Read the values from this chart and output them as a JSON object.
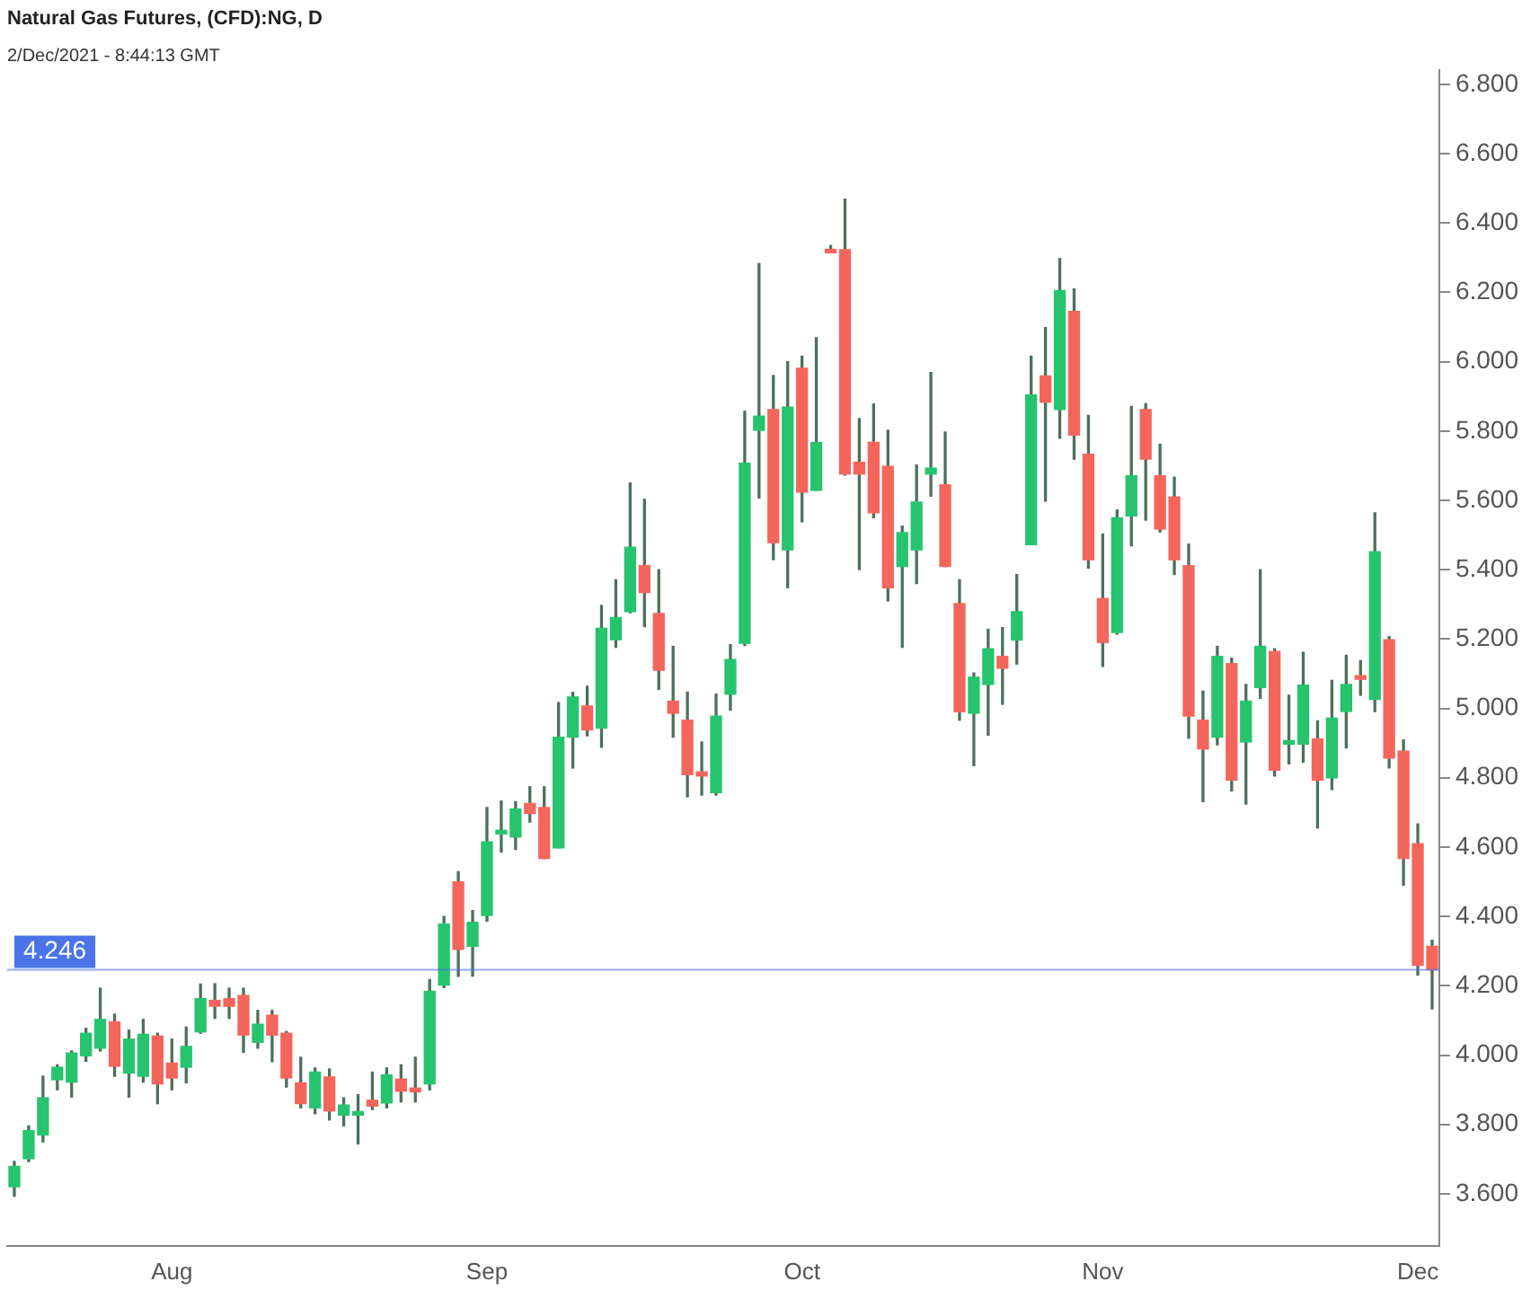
{
  "chart_data": {
    "type": "candlestick",
    "title": "Natural Gas Futures, (CFD):NG, D",
    "subtitle": "2/Dec/2021 - 8:44:13 GMT",
    "categories": [
      null,
      null,
      null,
      null,
      null,
      null,
      null,
      null,
      null,
      null,
      null,
      "Aug",
      null,
      null,
      null,
      null,
      null,
      null,
      null,
      null,
      null,
      null,
      null,
      null,
      null,
      null,
      null,
      null,
      null,
      null,
      null,
      null,
      null,
      "Sep",
      null,
      null,
      null,
      null,
      null,
      null,
      null,
      null,
      null,
      null,
      null,
      null,
      null,
      null,
      null,
      null,
      null,
      null,
      null,
      null,
      null,
      "Oct",
      null,
      null,
      null,
      null,
      null,
      null,
      null,
      null,
      null,
      null,
      null,
      null,
      null,
      null,
      null,
      null,
      null,
      null,
      null,
      null,
      "Nov",
      null,
      null,
      null,
      null,
      null,
      null,
      null,
      null,
      null,
      null,
      null,
      null,
      null,
      null,
      null,
      null,
      null,
      null,
      null,
      null,
      null,
      "Dec",
      null
    ],
    "ohlc": [
      [
        3.62,
        3.693,
        3.593,
        3.679
      ],
      [
        3.701,
        3.796,
        3.693,
        3.782
      ],
      [
        3.77,
        3.939,
        3.75,
        3.877
      ],
      [
        3.929,
        3.972,
        3.9,
        3.965
      ],
      [
        3.922,
        4.012,
        3.879,
        4.006
      ],
      [
        3.998,
        4.077,
        3.982,
        4.063
      ],
      [
        4.02,
        4.193,
        4.012,
        4.103
      ],
      [
        4.096,
        4.118,
        3.939,
        3.968
      ],
      [
        3.948,
        4.072,
        3.879,
        4.046
      ],
      [
        3.939,
        4.103,
        3.922,
        4.06
      ],
      [
        4.055,
        4.063,
        3.86,
        3.917
      ],
      [
        3.977,
        4.046,
        3.9,
        3.934
      ],
      [
        3.965,
        4.081,
        3.92,
        4.025
      ],
      [
        4.067,
        4.205,
        4.063,
        4.163
      ],
      [
        4.158,
        4.206,
        4.106,
        4.141
      ],
      [
        4.163,
        4.193,
        4.106,
        4.141
      ],
      [
        4.172,
        4.193,
        4.008,
        4.058
      ],
      [
        4.037,
        4.129,
        4.02,
        4.089
      ],
      [
        4.115,
        4.129,
        3.981,
        4.058
      ],
      [
        4.063,
        4.068,
        3.908,
        3.934
      ],
      [
        3.92,
        3.994,
        3.848,
        3.86
      ],
      [
        3.848,
        3.963,
        3.831,
        3.951
      ],
      [
        3.937,
        3.96,
        3.813,
        3.839
      ],
      [
        3.827,
        3.877,
        3.796,
        3.856
      ],
      [
        3.827,
        3.886,
        3.744,
        3.834
      ],
      [
        3.87,
        3.951,
        3.843,
        3.853
      ],
      [
        3.862,
        3.963,
        3.848,
        3.943
      ],
      [
        3.931,
        3.972,
        3.865,
        3.896
      ],
      [
        3.905,
        3.994,
        3.865,
        3.894
      ],
      [
        3.917,
        4.218,
        3.9,
        4.184
      ],
      [
        4.202,
        4.4,
        4.195,
        4.378
      ],
      [
        4.5,
        4.529,
        4.227,
        4.305
      ],
      [
        4.314,
        4.417,
        4.228,
        4.383
      ],
      [
        4.403,
        4.714,
        4.386,
        4.615
      ],
      [
        4.638,
        4.733,
        4.586,
        4.645
      ],
      [
        4.629,
        4.731,
        4.593,
        4.71
      ],
      [
        4.726,
        4.774,
        4.672,
        4.697
      ],
      [
        4.714,
        4.774,
        4.567,
        4.567
      ],
      [
        4.598,
        5.017,
        4.598,
        4.917
      ],
      [
        4.917,
        5.046,
        4.828,
        5.033
      ],
      [
        5.007,
        5.064,
        4.921,
        4.938
      ],
      [
        4.943,
        5.297,
        4.888,
        5.231
      ],
      [
        5.198,
        5.371,
        5.176,
        5.262
      ],
      [
        5.279,
        5.65,
        5.276,
        5.465
      ],
      [
        5.412,
        5.603,
        5.236,
        5.334
      ],
      [
        5.274,
        5.4,
        5.055,
        5.11
      ],
      [
        5.021,
        5.179,
        4.917,
        4.986
      ],
      [
        4.966,
        5.047,
        4.745,
        4.809
      ],
      [
        4.817,
        4.903,
        4.75,
        4.805
      ],
      [
        4.757,
        5.041,
        4.75,
        4.978
      ],
      [
        5.041,
        5.184,
        4.995,
        5.141
      ],
      [
        5.188,
        5.857,
        5.181,
        5.707
      ],
      [
        5.802,
        6.283,
        5.607,
        5.843
      ],
      [
        5.862,
        5.96,
        5.429,
        5.478
      ],
      [
        5.457,
        6.0,
        5.348,
        5.869
      ],
      [
        5.981,
        6.016,
        5.538,
        5.624
      ],
      [
        5.629,
        6.069,
        5.629,
        5.767
      ],
      [
        6.321,
        6.335,
        6.314,
        6.314
      ],
      [
        6.323,
        6.469,
        5.673,
        5.676
      ],
      [
        5.71,
        5.836,
        5.4,
        5.676
      ],
      [
        5.767,
        5.878,
        5.55,
        5.564
      ],
      [
        5.698,
        5.802,
        5.31,
        5.348
      ],
      [
        5.409,
        5.526,
        5.176,
        5.507
      ],
      [
        5.457,
        5.702,
        5.36,
        5.595
      ],
      [
        5.676,
        5.969,
        5.612,
        5.693
      ],
      [
        5.645,
        5.797,
        5.409,
        5.409
      ],
      [
        5.302,
        5.371,
        4.966,
        4.99
      ],
      [
        4.986,
        5.102,
        4.835,
        5.09
      ],
      [
        5.069,
        5.228,
        4.923,
        5.172
      ],
      [
        5.15,
        5.233,
        5.012,
        5.116
      ],
      [
        5.197,
        5.386,
        5.128,
        5.279
      ],
      [
        5.472,
        6.016,
        5.472,
        5.904
      ],
      [
        5.959,
        6.098,
        5.598,
        5.883
      ],
      [
        5.862,
        6.297,
        5.779,
        6.205
      ],
      [
        6.145,
        6.21,
        5.719,
        5.788
      ],
      [
        5.733,
        5.845,
        5.405,
        5.429
      ],
      [
        5.317,
        5.503,
        5.121,
        5.19
      ],
      [
        5.219,
        5.572,
        5.214,
        5.55
      ],
      [
        5.555,
        5.871,
        5.469,
        5.671
      ],
      [
        5.862,
        5.879,
        5.543,
        5.719
      ],
      [
        5.671,
        5.762,
        5.509,
        5.517
      ],
      [
        5.61,
        5.667,
        5.386,
        5.429
      ],
      [
        5.412,
        5.474,
        4.914,
        4.978
      ],
      [
        4.966,
        5.05,
        4.731,
        4.883
      ],
      [
        4.917,
        5.179,
        4.895,
        5.15
      ],
      [
        5.129,
        5.145,
        4.762,
        4.793
      ],
      [
        4.903,
        5.069,
        4.724,
        5.021
      ],
      [
        5.06,
        5.4,
        5.029,
        5.179
      ],
      [
        5.164,
        5.172,
        4.805,
        4.822
      ],
      [
        4.897,
        5.038,
        4.84,
        4.905
      ],
      [
        4.897,
        5.162,
        4.845,
        5.067
      ],
      [
        4.912,
        4.964,
        4.655,
        4.793
      ],
      [
        4.8,
        5.081,
        4.766,
        4.972
      ],
      [
        4.991,
        5.153,
        4.886,
        5.069
      ],
      [
        5.09,
        5.138,
        5.038,
        5.084
      ],
      [
        5.026,
        5.564,
        4.991,
        5.452
      ],
      [
        5.198,
        5.207,
        4.828,
        4.857
      ],
      [
        4.877,
        4.909,
        4.49,
        4.567
      ],
      [
        4.61,
        4.667,
        4.231,
        4.259
      ],
      [
        4.314,
        4.331,
        4.133,
        4.246
      ]
    ],
    "colors": [
      "#26c46f",
      "#26c46f",
      "#26c46f",
      "#26c46f",
      "#26c46f",
      "#26c46f",
      "#26c46f",
      "#f4665c",
      "#26c46f",
      "#26c46f",
      "#f4665c",
      "#f4665c",
      "#26c46f",
      "#26c46f",
      "#f4665c",
      "#f4665c",
      "#f4665c",
      "#26c46f",
      "#f4665c",
      "#f4665c",
      "#f4665c",
      "#26c46f",
      "#f4665c",
      "#26c46f",
      "#26c46f",
      "#f4665c",
      "#26c46f",
      "#f4665c",
      "#f4665c",
      "#26c46f",
      "#26c46f",
      "#f4665c",
      "#26c46f",
      "#26c46f",
      "#26c46f",
      "#26c46f",
      "#f4665c",
      "#f4665c",
      "#26c46f",
      "#26c46f",
      "#f4665c",
      "#26c46f",
      "#26c46f",
      "#26c46f",
      "#f4665c",
      "#f4665c",
      "#f4665c",
      "#f4665c",
      "#f4665c",
      "#26c46f",
      "#26c46f",
      "#26c46f",
      "#26c46f",
      "#f4665c",
      "#26c46f",
      "#f4665c",
      "#26c46f",
      "#f4665c",
      "#f4665c",
      "#f4665c",
      "#f4665c",
      "#f4665c",
      "#26c46f",
      "#26c46f",
      "#26c46f",
      "#f4665c",
      "#f4665c",
      "#26c46f",
      "#26c46f",
      "#f4665c",
      "#26c46f",
      "#26c46f",
      "#f4665c",
      "#26c46f",
      "#f4665c",
      "#f4665c",
      "#f4665c",
      "#26c46f",
      "#26c46f",
      "#f4665c",
      "#f4665c",
      "#f4665c",
      "#f4665c",
      "#f4665c",
      "#26c46f",
      "#f4665c",
      "#26c46f",
      "#26c46f",
      "#f4665c",
      "#26c46f",
      "#26c46f",
      "#f4665c",
      "#26c46f",
      "#26c46f",
      "#f4665c",
      "#26c46f",
      "#f4665c",
      "#f4665c",
      "#f4665c",
      "#f4665c"
    ],
    "ylim": [
      3.45,
      6.84
    ],
    "yticks": [
      {
        "value": 3.6,
        "label": "3.600"
      },
      {
        "value": 3.8,
        "label": "3.800"
      },
      {
        "value": 4.0,
        "label": "4.000"
      },
      {
        "value": 4.2,
        "label": "4.200"
      },
      {
        "value": 4.4,
        "label": "4.400"
      },
      {
        "value": 4.6,
        "label": "4.600"
      },
      {
        "value": 4.8,
        "label": "4.800"
      },
      {
        "value": 5.0,
        "label": "5.000"
      },
      {
        "value": 5.2,
        "label": "5.200"
      },
      {
        "value": 5.4,
        "label": "5.400"
      },
      {
        "value": 5.6,
        "label": "5.600"
      },
      {
        "value": 5.8,
        "label": "5.800"
      },
      {
        "value": 6.0,
        "label": "6.000"
      },
      {
        "value": 6.2,
        "label": "6.200"
      },
      {
        "value": 6.4,
        "label": "6.400"
      },
      {
        "value": 6.6,
        "label": "6.600"
      },
      {
        "value": 6.8,
        "label": "6.800"
      }
    ],
    "ref_lines": [
      {
        "axis": "y",
        "value": 4.246,
        "label": "4.246",
        "color": "#4a74e8"
      }
    ]
  }
}
